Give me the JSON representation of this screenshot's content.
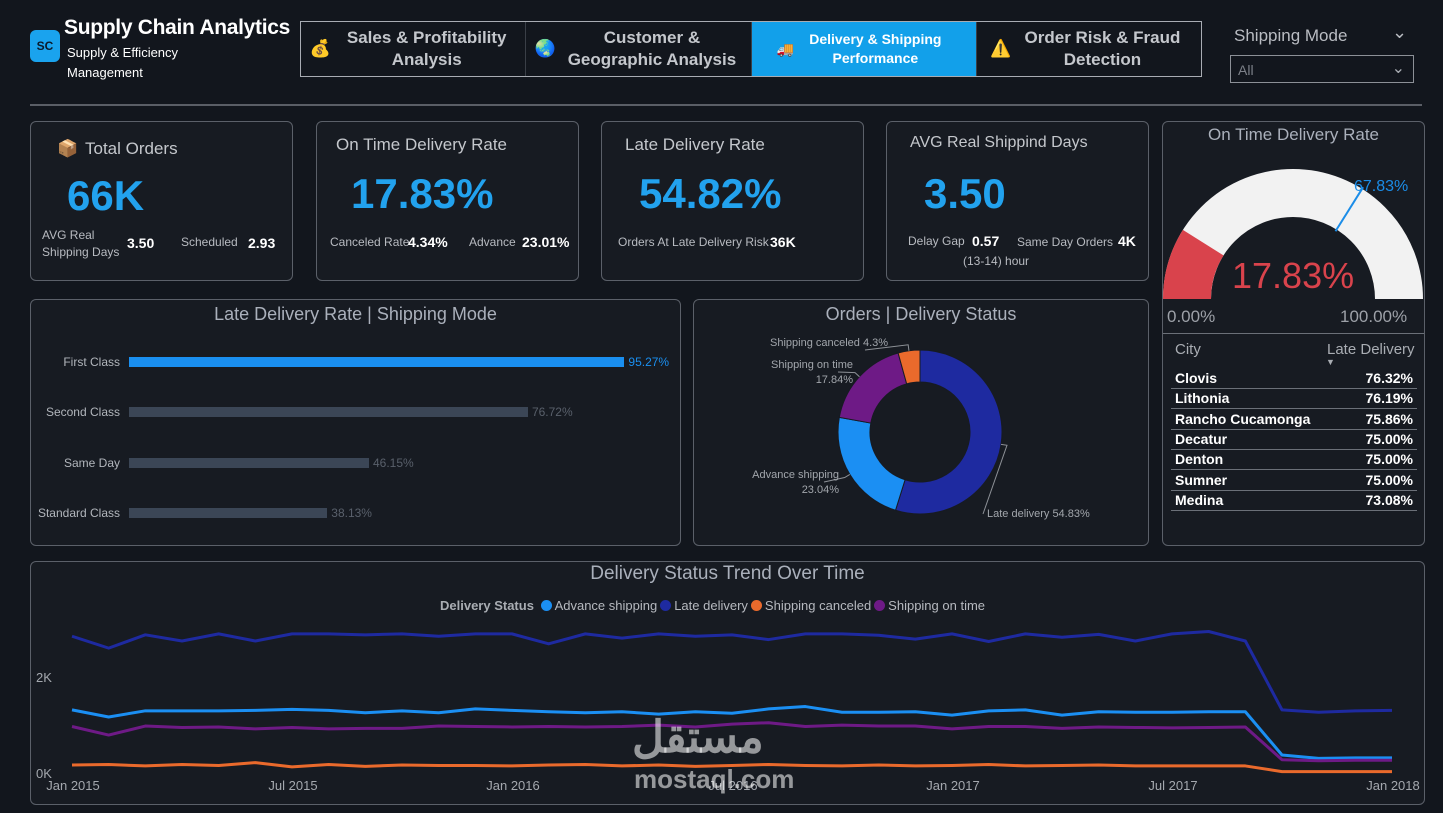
{
  "app": {
    "logo_text": "SC",
    "title": "Supply Chain Analytics",
    "subtitle": "Supply & Efficiency Management"
  },
  "nav": {
    "tabs": [
      {
        "icon": "💰",
        "label": "Sales & Profitability Analysis"
      },
      {
        "icon": "🌏",
        "label": "Customer & Geographic Analysis"
      },
      {
        "icon": "🚚",
        "label": "Delivery & Shipping Performance"
      },
      {
        "icon": "⚠️",
        "label": "Order Risk & Fraud Detection"
      }
    ],
    "active_index": 2
  },
  "filter": {
    "label": "Shipping Mode",
    "value": "All"
  },
  "kpis": {
    "total_orders": {
      "icon": "📦",
      "title": "Total Orders",
      "value": "66K",
      "m1_label": "AVG Real Shipping Days",
      "m1_value": "3.50",
      "m2_label": "Scheduled",
      "m2_value": "2.93"
    },
    "on_time": {
      "title": "On Time Delivery Rate",
      "value": "17.83%",
      "m1_label": "Canceled Rate",
      "m1_value": "4.34%",
      "m2_label": "Advance",
      "m2_value": "23.01%"
    },
    "late": {
      "title": "Late Delivery Rate",
      "value": "54.82%",
      "m1_label": "Orders At Late Delivery Risk",
      "m1_value": "36K"
    },
    "avg_days": {
      "title": "AVG Real Shippind Days",
      "value": "3.50",
      "m1_label": "Delay Gap",
      "m1_value": "0.57",
      "m1_sub": "(13-14) hour",
      "m2_label": "Same Day Orders",
      "m2_value": "4K"
    }
  },
  "gauge": {
    "title": "On Time Delivery Rate",
    "value": 17.83,
    "value_label": "17.83%",
    "target": 67.83,
    "target_label": "67.83%",
    "min_label": "0.00%",
    "max_label": "100.00%",
    "fill_color": "#d9434c",
    "track_color": "#f2f2f2",
    "target_color": "#1b8de8"
  },
  "city_table": {
    "col_city": "City",
    "col_late": "Late Delivery",
    "rows": [
      {
        "city": "Clovis",
        "value": "76.32%"
      },
      {
        "city": "Lithonia",
        "value": "76.19%"
      },
      {
        "city": "Rancho Cucamonga",
        "value": "75.86%"
      },
      {
        "city": "Decatur",
        "value": "75.00%"
      },
      {
        "city": "Denton",
        "value": "75.00%"
      },
      {
        "city": "Sumner",
        "value": "75.00%"
      },
      {
        "city": "Medina",
        "value": "73.08%"
      }
    ]
  },
  "chart_data": [
    {
      "type": "bar",
      "orientation": "horizontal",
      "title": "Late Delivery Rate | Shipping Mode",
      "categories": [
        "First Class",
        "Second Class",
        "Same Day",
        "Standard Class"
      ],
      "values": [
        95.27,
        76.72,
        46.15,
        38.13
      ],
      "value_labels": [
        "95.27%",
        "76.72%",
        "46.15%",
        "38.13%"
      ],
      "highlight_index": 0,
      "colors": {
        "highlight": "#1a8ff0",
        "normal": "#3b4656"
      }
    },
    {
      "type": "pie",
      "variant": "donut",
      "title": "Orders | Delivery Status",
      "slices": [
        {
          "label": "Late delivery",
          "value": 54.83,
          "value_label": "54.83%",
          "color": "#1e2aa0"
        },
        {
          "label": "Advance shipping",
          "value": 23.04,
          "value_label": "23.04%",
          "color": "#1b8ff3"
        },
        {
          "label": "Shipping on time",
          "value": 17.84,
          "value_label": "17.84%",
          "color": "#6e1a86"
        },
        {
          "label": "Shipping canceled",
          "value": 4.3,
          "value_label": "4.3%",
          "color": "#ea6a2c"
        }
      ]
    },
    {
      "type": "line",
      "title": "Delivery Status Trend Over Time",
      "legend_title": "Delivery Status",
      "legend_position": "top-center",
      "x_tick_labels": [
        "Jan 2015",
        "Jul 2015",
        "Jan 2016",
        "Jul 2016",
        "Jan 2017",
        "Jul 2017",
        "Jan 2018"
      ],
      "y_tick_labels": [
        "0K",
        "2K"
      ],
      "ylim": [
        0,
        3600
      ],
      "x": [
        "2015-01",
        "2015-02",
        "2015-03",
        "2015-04",
        "2015-05",
        "2015-06",
        "2015-07",
        "2015-08",
        "2015-09",
        "2015-10",
        "2015-11",
        "2015-12",
        "2016-01",
        "2016-02",
        "2016-03",
        "2016-04",
        "2016-05",
        "2016-06",
        "2016-07",
        "2016-08",
        "2016-09",
        "2016-10",
        "2016-11",
        "2016-12",
        "2017-01",
        "2017-02",
        "2017-03",
        "2017-04",
        "2017-05",
        "2017-06",
        "2017-07",
        "2017-08",
        "2017-09",
        "2017-10",
        "2017-11",
        "2017-12",
        "2018-01"
      ],
      "series": [
        {
          "name": "Advance shipping",
          "color": "#1b8ff3",
          "values": [
            1350,
            1200,
            1330,
            1330,
            1330,
            1340,
            1360,
            1340,
            1290,
            1330,
            1290,
            1370,
            1340,
            1310,
            1290,
            1310,
            1260,
            1310,
            1280,
            1370,
            1420,
            1300,
            1300,
            1310,
            1240,
            1330,
            1350,
            1240,
            1310,
            1300,
            1300,
            1310,
            1310,
            400,
            330,
            340,
            340
          ]
        },
        {
          "name": "Late delivery",
          "color": "#1e2aa0",
          "values": [
            2900,
            2650,
            2930,
            2800,
            2950,
            2800,
            2950,
            2950,
            2930,
            2950,
            2900,
            2950,
            2950,
            2740,
            2950,
            2860,
            2950,
            2900,
            2930,
            2830,
            2950,
            2950,
            2920,
            2840,
            2950,
            2790,
            2950,
            2880,
            2940,
            2800,
            2950,
            3000,
            2800,
            1350,
            1300,
            1330,
            1340
          ]
        },
        {
          "name": "Shipping canceled",
          "color": "#ea6a2c",
          "values": [
            190,
            200,
            170,
            200,
            180,
            240,
            150,
            200,
            160,
            190,
            180,
            180,
            170,
            190,
            200,
            170,
            190,
            160,
            180,
            200,
            180,
            170,
            190,
            170,
            180,
            200,
            170,
            180,
            190,
            170,
            170,
            170,
            170,
            50,
            50,
            50,
            50
          ]
        },
        {
          "name": "Shipping on time",
          "color": "#6e1a86",
          "values": [
            1000,
            820,
            1010,
            980,
            990,
            950,
            980,
            950,
            960,
            960,
            1010,
            1000,
            990,
            1000,
            990,
            1000,
            1030,
            990,
            1050,
            1080,
            1000,
            1030,
            1010,
            1010,
            950,
            1000,
            1000,
            960,
            990,
            980,
            970,
            980,
            990,
            300,
            280,
            290,
            290
          ]
        }
      ]
    }
  ],
  "watermark": {
    "arabic": "مستقل",
    "latin": "mostaql.com"
  }
}
